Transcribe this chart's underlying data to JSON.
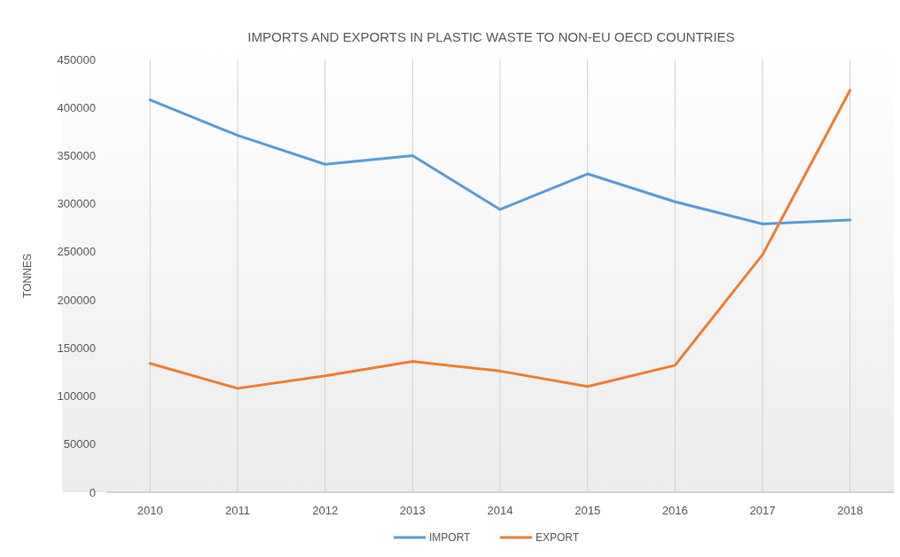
{
  "chart_data": {
    "type": "line",
    "title": "IMPORTS AND EXPORTS IN PLASTIC WASTE TO NON-EU OECD COUNTRIES",
    "ylabel": "TONNES",
    "categories": [
      "2010",
      "2011",
      "2012",
      "2013",
      "2014",
      "2015",
      "2016",
      "2017",
      "2018"
    ],
    "series": [
      {
        "name": "IMPORT",
        "color": "#5b9bd5",
        "values": [
          408000,
          371000,
          341000,
          350000,
          294000,
          331000,
          302000,
          279000,
          283000
        ]
      },
      {
        "name": "EXPORT",
        "color": "#ed7d31",
        "values": [
          134000,
          108000,
          121000,
          136000,
          126000,
          110000,
          132000,
          247000,
          418000
        ]
      }
    ],
    "ylim": [
      0,
      450000
    ],
    "yticks": [
      0,
      50000,
      100000,
      150000,
      200000,
      250000,
      300000,
      350000,
      400000,
      450000
    ],
    "grid": "x",
    "legend": "bottom",
    "marker": "none",
    "line_style": "solid"
  }
}
